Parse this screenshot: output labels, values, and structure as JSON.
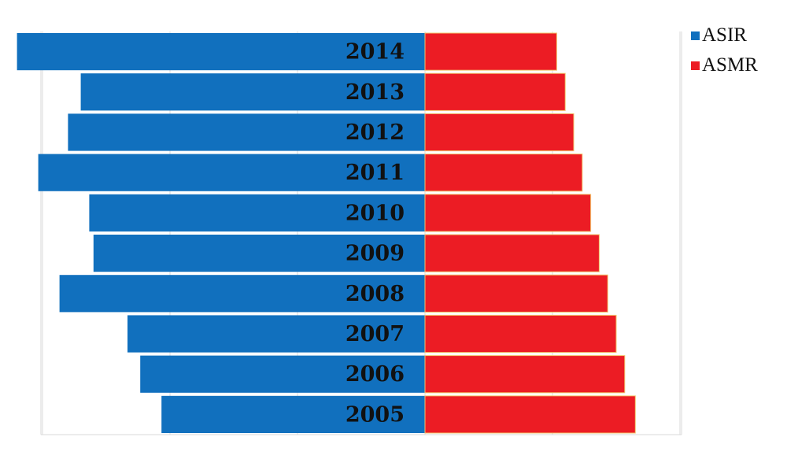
{
  "chart_data": {
    "type": "bar",
    "orientation": "horizontal-diverging",
    "categories": [
      "2014",
      "2013",
      "2012",
      "2011",
      "2010",
      "2009",
      "2008",
      "2007",
      "2006",
      "2005"
    ],
    "series": [
      {
        "name": "ASIR",
        "color": "#1170BE",
        "direction": "left",
        "values": [
          96,
          81,
          84,
          91,
          79,
          78,
          86,
          70,
          67,
          62
        ]
      },
      {
        "name": "ASMR",
        "color": "#EC1C24",
        "direction": "right",
        "values": [
          31,
          33,
          35,
          37,
          39,
          41,
          43,
          45,
          47,
          49.5
        ]
      }
    ],
    "xlim": [
      -100,
      60
    ],
    "grid": true,
    "legend_position": "top-right",
    "title": "",
    "xlabel": "",
    "ylabel": ""
  }
}
